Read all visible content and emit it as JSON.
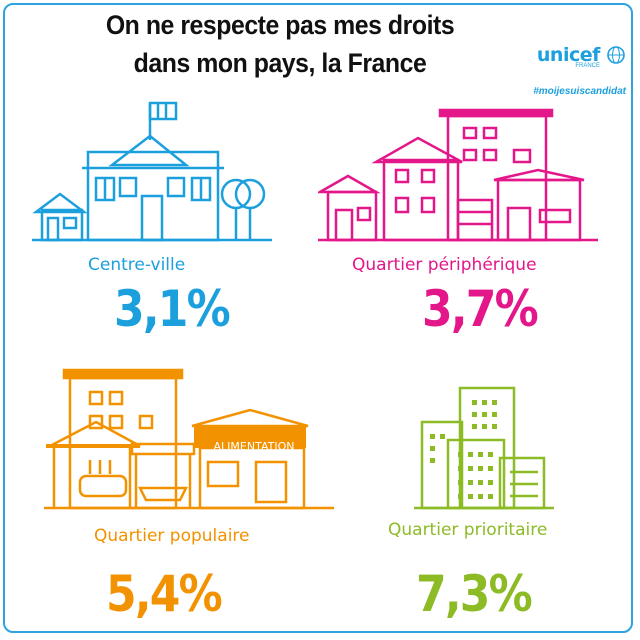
{
  "title": {
    "line1": "On ne respecte pas mes droits",
    "line2": "dans mon pays, la France"
  },
  "logo": {
    "word": "unicef",
    "sub": "FRANCE"
  },
  "hashtag": "#moijesuiscandidat",
  "panels": [
    {
      "label": "Centre-ville",
      "value": "3,1%",
      "color": "#1ca0dd"
    },
    {
      "label": "Quartier périphérique",
      "value": "3,7%",
      "color": "#e3168a"
    },
    {
      "label": "Quartier populaire",
      "value": "5,4%",
      "color": "#f39200",
      "shop_sign": "ALIMENTATION"
    },
    {
      "label": "Quartier prioritaire",
      "value": "7,3%",
      "color": "#8dbb25"
    }
  ],
  "colors": {
    "frame": "#2ea3e0",
    "title": "#111111"
  }
}
